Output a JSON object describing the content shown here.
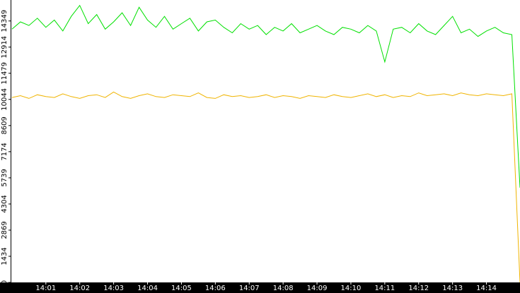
{
  "chart_data": {
    "type": "line",
    "x": [
      0,
      0.25,
      0.5,
      0.75,
      1,
      1.25,
      1.5,
      1.75,
      2,
      2.25,
      2.5,
      2.75,
      3,
      3.25,
      3.5,
      3.75,
      4,
      4.25,
      4.5,
      4.75,
      5,
      5.25,
      5.5,
      5.75,
      6,
      6.25,
      6.5,
      6.75,
      7,
      7.25,
      7.5,
      7.75,
      8,
      8.25,
      8.5,
      8.75,
      9,
      9.25,
      9.5,
      9.75,
      10,
      10.25,
      10.5,
      10.75,
      11,
      11.25,
      11.5,
      11.75,
      12,
      12.25,
      12.5,
      12.75,
      13,
      13.25,
      13.5,
      13.75,
      14,
      14.25,
      14.5,
      14.75,
      14.99
    ],
    "series": [
      {
        "color": "#00e000",
        "values": [
          13900,
          14300,
          14100,
          14500,
          14000,
          14400,
          13800,
          14600,
          15200,
          14200,
          14700,
          13900,
          14300,
          14800,
          14100,
          15100,
          14400,
          14000,
          14600,
          13900,
          14200,
          14500,
          13800,
          14300,
          14400,
          14000,
          13700,
          14200,
          13900,
          14100,
          13600,
          14000,
          13800,
          14200,
          13700,
          13900,
          14100,
          13800,
          13600,
          14000,
          13900,
          13700,
          14100,
          13800,
          12100,
          13900,
          14000,
          13700,
          14200,
          13800,
          13600,
          14100,
          14600,
          13700,
          13900,
          13500,
          13800,
          14000,
          13700,
          13600,
          5200
        ]
      },
      {
        "color": "#f0b400",
        "values": [
          10150,
          10250,
          10100,
          10300,
          10200,
          10150,
          10350,
          10200,
          10100,
          10250,
          10300,
          10150,
          10450,
          10200,
          10100,
          10250,
          10350,
          10200,
          10150,
          10300,
          10250,
          10200,
          10400,
          10150,
          10100,
          10300,
          10200,
          10250,
          10150,
          10200,
          10300,
          10150,
          10250,
          10200,
          10100,
          10250,
          10200,
          10150,
          10300,
          10200,
          10150,
          10250,
          10350,
          10200,
          10300,
          10150,
          10250,
          10200,
          10400,
          10250,
          10300,
          10350,
          10250,
          10400,
          10300,
          10250,
          10350,
          10300,
          10250,
          10350,
          0
        ]
      }
    ],
    "xlim": [
      -0.04,
      14.99
    ],
    "xticks": [
      {
        "value": 1,
        "label": "14:01"
      },
      {
        "value": 2,
        "label": "14:02"
      },
      {
        "value": 3,
        "label": "14:03"
      },
      {
        "value": 4,
        "label": "14:04"
      },
      {
        "value": 5,
        "label": "14:05"
      },
      {
        "value": 6,
        "label": "14:06"
      },
      {
        "value": 7,
        "label": "14:07"
      },
      {
        "value": 8,
        "label": "14:08"
      },
      {
        "value": 9,
        "label": "14:09"
      },
      {
        "value": 10,
        "label": "14:10"
      },
      {
        "value": 11,
        "label": "14:11"
      },
      {
        "value": 12,
        "label": "14:12"
      },
      {
        "value": 13,
        "label": "14:13"
      },
      {
        "value": 14,
        "label": "14:14"
      }
    ],
    "ylim": [
      0,
      15500
    ],
    "yticks": [
      0,
      1434,
      2869,
      4304,
      5739,
      7174,
      8609,
      10044,
      11479,
      12914,
      14349
    ]
  }
}
